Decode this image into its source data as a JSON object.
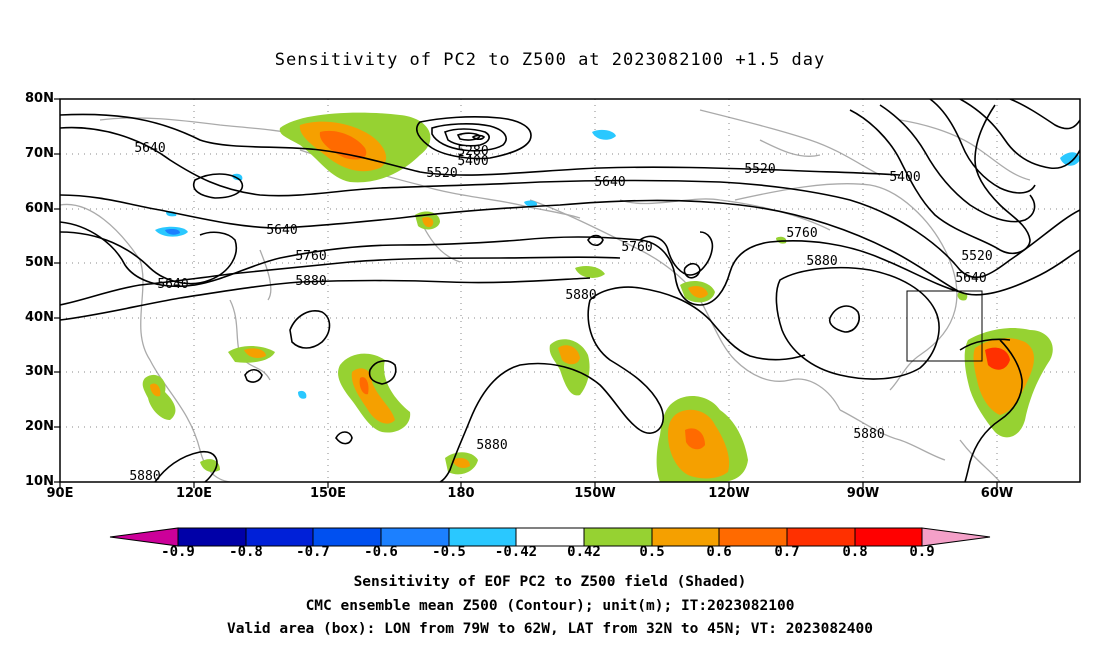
{
  "title": "Sensitivity of PC2 to Z500 at 2023082100 +1.5 day",
  "lat_labels": [
    "80N",
    "70N",
    "60N",
    "50N",
    "40N",
    "30N",
    "20N",
    "10N"
  ],
  "lon_labels": [
    "90E",
    "120E",
    "150E",
    "180",
    "150W",
    "120W",
    "90W",
    "60W"
  ],
  "contour_labels": [
    "5640",
    "5280",
    "5400",
    "5520",
    "5640",
    "5520",
    "5400",
    "5640",
    "5760",
    "5640",
    "5760",
    "5880",
    "5880",
    "5760",
    "5880",
    "5520",
    "5640",
    "5880",
    "5880",
    "5880"
  ],
  "colorbar": {
    "labels": [
      "-0.9",
      "-0.8",
      "-0.7",
      "-0.6",
      "-0.5",
      "-0.42",
      "0.42",
      "0.5",
      "0.6",
      "0.7",
      "0.8",
      "0.9"
    ],
    "colors": [
      "#cc0099",
      "#0000a8",
      "#0020d8",
      "#0050f0",
      "#1c80ff",
      "#2ac8ff",
      "#ffffff",
      "#96d232",
      "#f5a000",
      "#ff6a00",
      "#ff3000",
      "#ff0000",
      "#f4a0c8"
    ]
  },
  "captions": [
    "Sensitivity of EOF PC2 to Z500 field (Shaded)",
    "CMC ensemble mean Z500 (Contour); unit(m); IT:2023082100",
    "Valid area (box): LON from 79W to 62W, LAT from 32N to 45N; VT: 2023082400"
  ]
}
